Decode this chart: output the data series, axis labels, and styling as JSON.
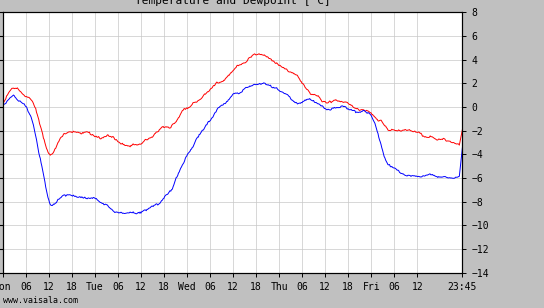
{
  "title": "Temperature and Dewpoint [°C]",
  "ylim": [
    -14,
    8
  ],
  "yticks": [
    -14,
    -12,
    -10,
    -8,
    -6,
    -4,
    -2,
    0,
    2,
    4,
    6,
    8
  ],
  "background_color": "#c0c0c0",
  "plot_bg_color": "#ffffff",
  "grid_color": "#c8c8c8",
  "temp_color": "#ff0000",
  "dew_color": "#0000ff",
  "watermark": "www.vaisala.com",
  "x_tick_labels": [
    "Mon",
    "06",
    "12",
    "18",
    "Tue",
    "06",
    "12",
    "18",
    "Wed",
    "06",
    "12",
    "18",
    "Thu",
    "06",
    "12",
    "18",
    "Fri",
    "06",
    "12",
    "23:45"
  ],
  "x_tick_positions": [
    0,
    6,
    12,
    18,
    24,
    30,
    36,
    42,
    48,
    54,
    60,
    66,
    72,
    78,
    84,
    90,
    96,
    102,
    108,
    119.75
  ],
  "line_width": 0.7,
  "title_fontsize": 8,
  "tick_fontsize": 7,
  "watermark_fontsize": 6
}
